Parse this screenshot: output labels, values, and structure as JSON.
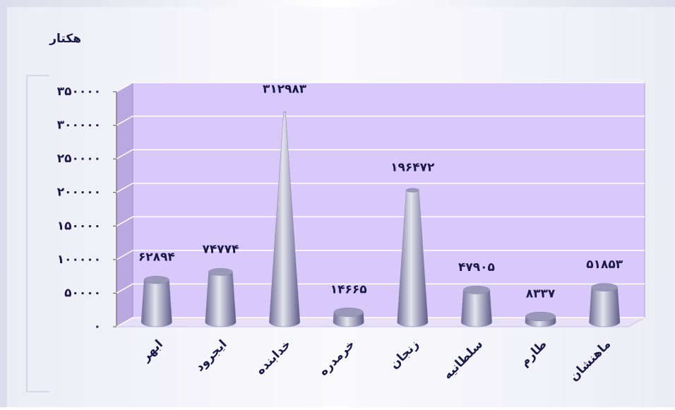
{
  "chart_data": {
    "type": "bar3d",
    "axis_label": "هکتار",
    "categories": [
      "ابهر",
      "ایجرود",
      "خدابنده",
      "خرمدره",
      "زنجان",
      "سلطانیه",
      "طارم",
      "ماهنشان"
    ],
    "values": [
      62894,
      74774,
      312983,
      14665,
      196472,
      47905,
      8337,
      51853
    ],
    "value_labels": [
      "۶۲۸۹۴",
      "۷۴۷۷۴",
      "۳۱۲۹۸۳",
      "۱۴۶۶۵",
      "۱۹۶۴۷۲",
      "۴۷۹۰۵",
      "۸۳۳۷",
      "۵۱۸۵۳"
    ],
    "color": "#8482a8",
    "ylim": [
      0,
      350000
    ],
    "yticks": [
      {
        "value": 0,
        "label": "۰"
      },
      {
        "value": 50000,
        "label": "۵۰۰۰۰"
      },
      {
        "value": 100000,
        "label": "۱۰۰۰۰۰"
      },
      {
        "value": 150000,
        "label": "۱۵۰۰۰۰"
      },
      {
        "value": 200000,
        "label": "۲۰۰۰۰۰"
      },
      {
        "value": 250000,
        "label": "۲۵۰۰۰۰"
      },
      {
        "value": 300000,
        "label": "۳۰۰۰۰۰"
      },
      {
        "value": 350000,
        "label": "۳۵۰۰۰۰"
      }
    ],
    "grid": true
  }
}
